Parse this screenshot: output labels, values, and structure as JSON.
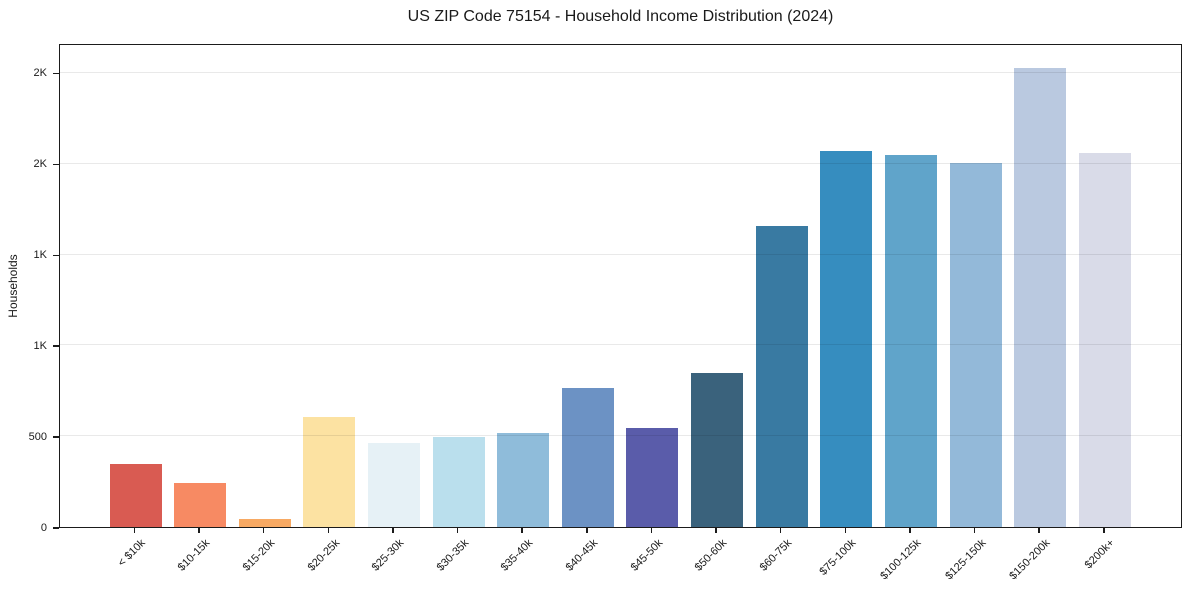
{
  "chart_data": {
    "type": "bar",
    "title": "US ZIP Code 75154 - Household Income Distribution (2024)",
    "xlabel": "",
    "ylabel": "Households",
    "categories": [
      "< $10k",
      "$10-15k",
      "$15-20k",
      "$20-25k",
      "$25-30k",
      "$30-35k",
      "$35-40k",
      "$40-45k",
      "$45-50k",
      "$50-60k",
      "$60-75k",
      "$75-100k",
      "$100-125k",
      "$125-150k",
      "$150-200k",
      "$200k+"
    ],
    "values": [
      345,
      240,
      45,
      605,
      460,
      495,
      515,
      765,
      545,
      850,
      1660,
      2070,
      2050,
      2005,
      2530,
      2060
    ],
    "bar_colors": [
      "#d95b52",
      "#f78a63",
      "#f7a963",
      "#fce2a2",
      "#e6f1f6",
      "#badfed",
      "#8fbcda",
      "#6c92c4",
      "#5a5caa",
      "#3a627c",
      "#397aa2",
      "#368dbf",
      "#60a4ca",
      "#93b9d9",
      "#bac9e0",
      "#d9dbe8"
    ],
    "ylim": [
      0,
      2665
    ],
    "yticks": [
      {
        "value": 0,
        "label": "0"
      },
      {
        "value": 500,
        "label": "500"
      },
      {
        "value": 1000,
        "label": "1K"
      },
      {
        "value": 1500,
        "label": "1K"
      },
      {
        "value": 2000,
        "label": "2K"
      },
      {
        "value": 2500,
        "label": "2K"
      }
    ],
    "grid": "horizontal-only",
    "legend": "none",
    "colors": {
      "axis": "#1b1b1b",
      "grid": "#e8e8e8",
      "text": "#1a1a1a",
      "background": "#ffffff"
    }
  }
}
